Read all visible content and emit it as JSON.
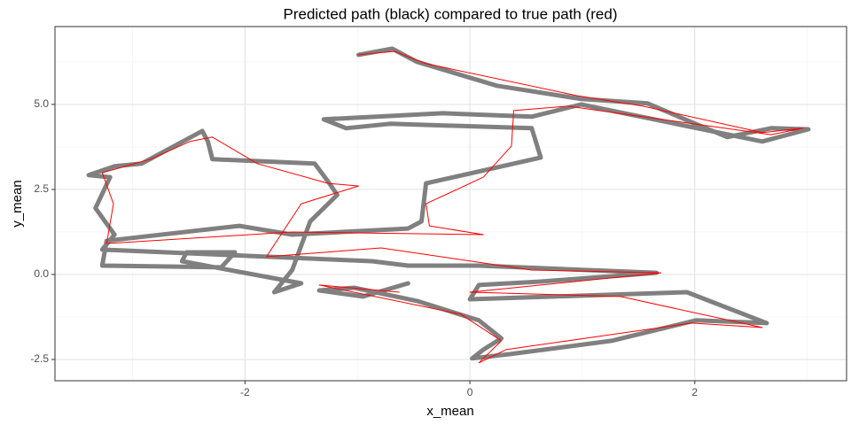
{
  "chart_data": {
    "type": "path",
    "title": "Predicted path (black) compared to true path (red)",
    "x_label": "x_mean",
    "y_label": "y_mean",
    "xlim": [
      -3.69,
      3.35
    ],
    "ylim": [
      -3.125,
      7.29
    ],
    "xticks": [
      -2,
      0,
      2
    ],
    "yticks": [
      -2.5,
      {
        "value": 0,
        "label": "0.0"
      },
      2.5,
      {
        "value": 5,
        "label": "5.0"
      }
    ],
    "xminorticks": [
      -3,
      -1,
      1,
      3
    ],
    "yminorticks": [
      -1.25,
      1.25,
      3.75,
      6.25
    ],
    "grid": true,
    "series": [
      {
        "name": "predicted",
        "color": "#808080",
        "width": 5,
        "x": [
          -0.99,
          -0.69,
          -0.47,
          0.24,
          0.99,
          1.58,
          1.97,
          2.29,
          2.68,
          3.01,
          2.6,
          0.99,
          0.55,
          -0.24,
          -1.3,
          -1.1,
          -0.71,
          0.55,
          0.63,
          -0.39,
          -0.43,
          -0.55,
          -1.58,
          -2.05,
          -3.23,
          -3.27,
          -2.21,
          -2.09,
          -2.52,
          -2.56,
          -1.5,
          -1.74,
          -1.58,
          -1.42,
          -1.18,
          -1.26,
          -1.38,
          -2.29,
          -2.33,
          -2.38,
          -2.92,
          -3.16,
          -3.39,
          -3.2,
          -3.33,
          -3.16,
          -3.27,
          -0.87,
          -0.55,
          0.08,
          1.66,
          0.63,
          0.08,
          0.0,
          1.93,
          2.64,
          2.01,
          1.26,
          0.36,
          0.02,
          0.12,
          0.28,
          0.08,
          -0.47,
          -1.03,
          -1.34,
          -0.95,
          -0.55
        ],
        "values": [
          6.46,
          6.64,
          6.25,
          5.55,
          5.16,
          5.03,
          4.48,
          4.04,
          4.3,
          4.27,
          3.91,
          5.0,
          4.64,
          4.74,
          4.56,
          4.3,
          4.43,
          4.3,
          3.44,
          2.68,
          1.56,
          1.35,
          1.17,
          1.43,
          0.99,
          0.26,
          0.21,
          0.65,
          0.65,
          0.39,
          -0.26,
          -0.52,
          0.13,
          1.56,
          2.34,
          2.73,
          3.26,
          3.39,
          3.91,
          4.22,
          3.26,
          3.18,
          2.92,
          2.86,
          1.95,
          1.17,
          0.73,
          0.39,
          0.26,
          0.26,
          0.05,
          -0.21,
          -0.31,
          -0.73,
          -0.52,
          -1.43,
          -1.35,
          -1.95,
          -2.34,
          -2.47,
          -2.21,
          -1.88,
          -1.35,
          -0.78,
          -0.39,
          -0.47,
          -0.65,
          -0.26
        ]
      },
      {
        "name": "true",
        "color": "#ff0000",
        "width": 1,
        "x": [
          -0.99,
          -0.67,
          -0.39,
          0.95,
          1.54,
          2.6,
          2.96,
          2.68,
          0.87,
          0.39,
          0.37,
          0.12,
          -0.39,
          -0.36,
          0.12,
          -1.58,
          -3.23,
          -3.17,
          -3.27,
          -2.84,
          -2.49,
          -2.29,
          -1.89,
          -1.26,
          -0.99,
          -1.5,
          -1.81,
          -0.79,
          0.55,
          1.7,
          0.0,
          1.34,
          2.6,
          1.97,
          0.32,
          0.08,
          0.28,
          -0.08,
          -1.34,
          -0.63
        ],
        "values": [
          6.46,
          6.56,
          6.2,
          5.26,
          4.95,
          4.17,
          4.3,
          4.11,
          4.95,
          4.82,
          3.78,
          2.86,
          2.08,
          1.43,
          1.17,
          1.25,
          0.91,
          2.08,
          2.99,
          3.39,
          3.91,
          4.04,
          3.26,
          2.68,
          2.6,
          2.08,
          0.52,
          0.78,
          0.13,
          0.05,
          -0.52,
          -0.65,
          -1.56,
          -1.43,
          -2.21,
          -2.6,
          -1.95,
          -1.17,
          -0.31,
          -0.52
        ]
      }
    ]
  }
}
